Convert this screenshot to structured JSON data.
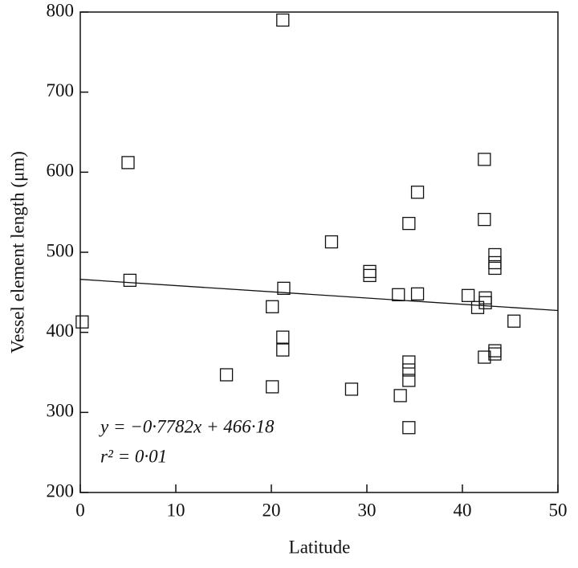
{
  "chart_data": {
    "type": "scatter",
    "x_label": "Latitude",
    "y_label": "Vessel element length (μm)",
    "annotations": [
      "y = −0·7782x + 466·18",
      "r² = 0·01"
    ],
    "fit": {
      "slope": -0.7782,
      "intercept": 466.18
    },
    "xlim": [
      0,
      50
    ],
    "xticks": [
      0,
      10,
      20,
      30,
      40,
      50
    ],
    "ylim": [
      200,
      800
    ],
    "yticks": [
      200,
      300,
      400,
      500,
      600,
      700,
      800
    ],
    "color": "#111111",
    "x": [
      0.2,
      5.0,
      5.2,
      15.3,
      20.1,
      20.1,
      21.2,
      21.3,
      21.2,
      21.2,
      26.3,
      28.4,
      30.3,
      30.3,
      33.3,
      33.5,
      34.4,
      34.4,
      34.4,
      34.4,
      34.4,
      35.3,
      35.3,
      40.6,
      41.6,
      42.3,
      42.3,
      42.4,
      42.4,
      42.3,
      43.4,
      43.4,
      43.4,
      43.4,
      43.4,
      45.4
    ],
    "values": [
      413,
      612,
      465,
      347,
      432,
      332,
      790,
      455,
      394,
      378,
      513,
      329,
      476,
      471,
      447,
      321,
      536,
      363,
      353,
      340,
      281,
      575,
      448,
      446,
      431,
      616,
      541,
      443,
      437,
      369,
      497,
      487,
      480,
      377,
      373,
      414
    ]
  }
}
